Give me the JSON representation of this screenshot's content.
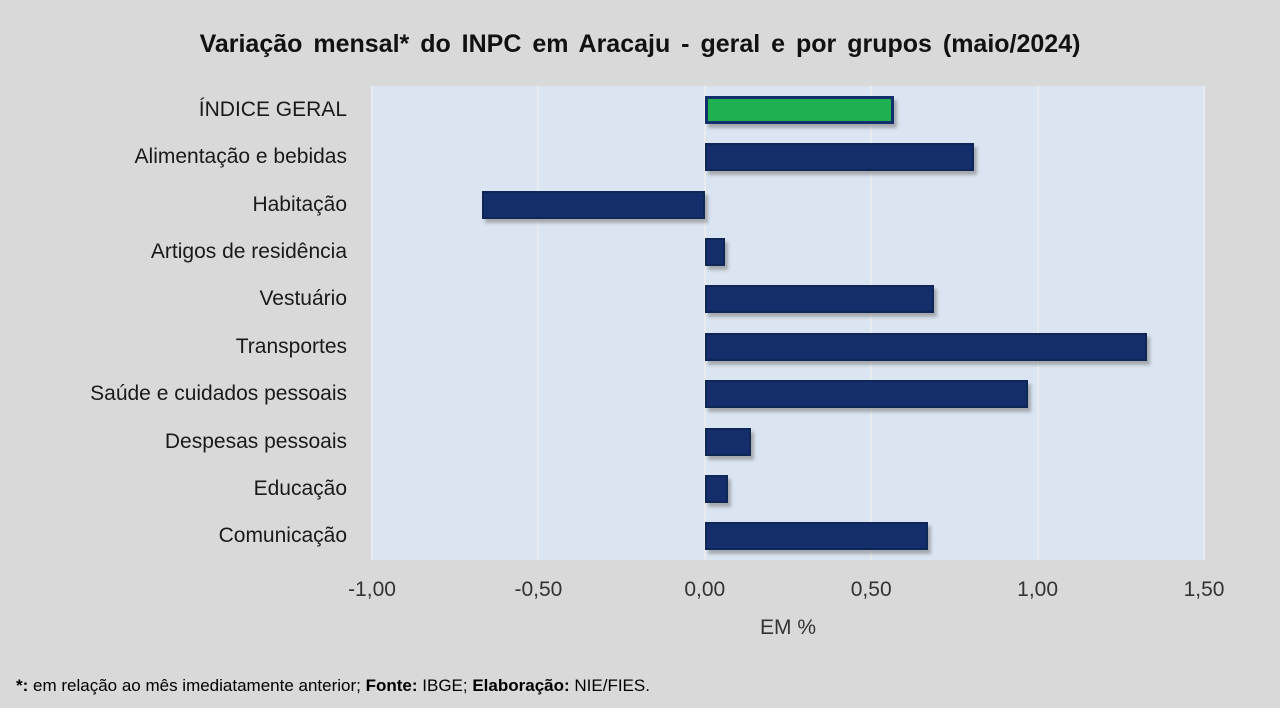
{
  "title": "Variação  mensal*  do  INPC em Aracaju  - geral e  por  grupos  (maio/2024)",
  "chart_data": {
    "type": "bar",
    "orientation": "horizontal",
    "title": "Variação mensal* do INPC em Aracaju - geral e por grupos (maio/2024)",
    "categories": [
      "ÍNDICE GERAL",
      "Alimentação e bebidas",
      "Habitação",
      "Artigos de residência",
      "Vestuário",
      "Transportes",
      "Saúde e cuidados pessoais",
      "Despesas pessoais",
      "Educação",
      "Comunicação"
    ],
    "values": [
      0.57,
      0.81,
      -0.67,
      0.06,
      0.69,
      1.33,
      0.97,
      0.14,
      0.07,
      0.67
    ],
    "highlight_index": 0,
    "xlabel": "EM %",
    "xlim": [
      -1.0,
      1.5
    ],
    "xticks": [
      "-1,00",
      "-0,50",
      "0,00",
      "0,50",
      "1,00",
      "1,50"
    ],
    "xtick_values": [
      -1.0,
      -0.5,
      0.0,
      0.5,
      1.0,
      1.5
    ],
    "grid": true,
    "legend": "none",
    "colors": {
      "bar_default": "#132e6b",
      "bar_highlight": "#1fb052",
      "plot_background": "#dbe5f2",
      "page_background": "#d9d9d9"
    }
  },
  "footnote": {
    "segments": [
      {
        "text": "*:",
        "bold": true
      },
      {
        "text": " em relação ao mês imediatamente  anterior; ",
        "bold": false
      },
      {
        "text": "Fonte:",
        "bold": true
      },
      {
        "text": " IBGE; ",
        "bold": false
      },
      {
        "text": "Elaboração:",
        "bold": true
      },
      {
        "text": " NIE/FIES.",
        "bold": false
      }
    ]
  }
}
